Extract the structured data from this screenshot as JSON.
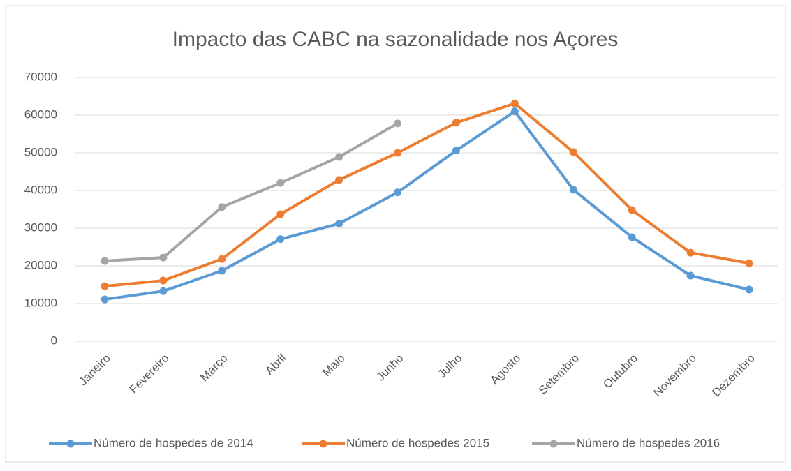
{
  "chart_data": {
    "type": "line",
    "title": "Impacto das CABC na sazonalidade nos Açores",
    "categories": [
      "Janeiro",
      "Fevereiro",
      "Março",
      "Abril",
      "Maio",
      "Junho",
      "Julho",
      "Agosto",
      "Setembro",
      "Outubro",
      "Novembro",
      "Dezembro"
    ],
    "series": [
      {
        "name": "Número de hospedes de 2014",
        "color": "#5b9bd5",
        "values": [
          11100,
          13300,
          18700,
          27100,
          31200,
          39500,
          50600,
          61000,
          40200,
          27600,
          17400,
          13700
        ]
      },
      {
        "name": "Número de hospedes 2015",
        "color": "#ed7d31",
        "values": [
          14600,
          16100,
          21800,
          33700,
          42800,
          50000,
          58000,
          63100,
          50200,
          34800,
          23500,
          20700
        ]
      },
      {
        "name": "Número de hospedes 2016",
        "color": "#a5a5a5",
        "values": [
          21300,
          22200,
          35600,
          42000,
          48900,
          57800,
          null,
          null,
          null,
          null,
          null,
          null
        ]
      }
    ],
    "ylim": [
      0,
      70000
    ],
    "yticks": [
      0,
      10000,
      20000,
      30000,
      40000,
      50000,
      60000,
      70000
    ],
    "grid": true,
    "legend": "bottom"
  }
}
